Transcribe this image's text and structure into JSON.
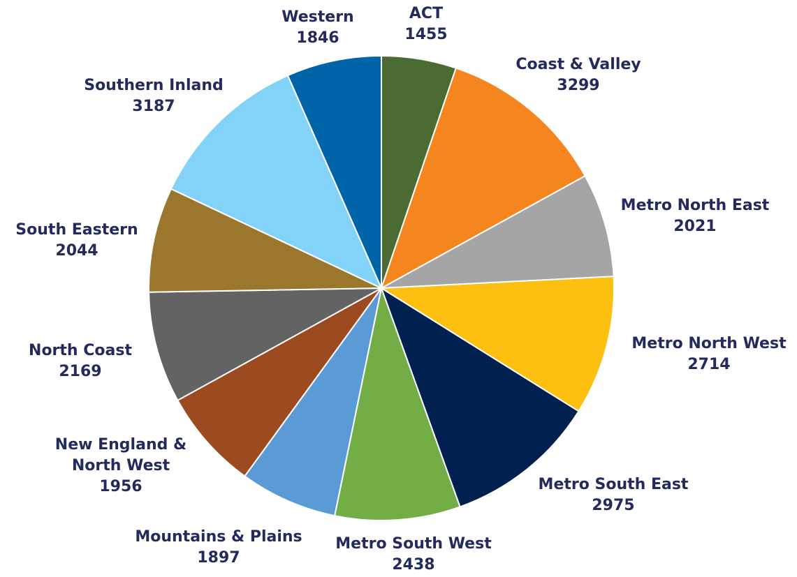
{
  "chart_data": {
    "type": "pie",
    "categories": [
      "ACT",
      "Coast & Valley",
      "Metro North East",
      "Metro North West",
      "Metro South East",
      "Metro South West",
      "Mountains & Plains",
      "New England & North West",
      "North Coast",
      "South Eastern",
      "Southern Inland",
      "Western"
    ],
    "values": [
      1455,
      3299,
      2021,
      2714,
      2975,
      2438,
      1897,
      1956,
      2169,
      2044,
      3187,
      1846
    ],
    "colors": [
      "#4a6b32",
      "#f5851f",
      "#a5a5a5",
      "#fdbf10",
      "#00214f",
      "#72ad45",
      "#5b9bd5",
      "#9c4a20",
      "#636363",
      "#9a772c",
      "#82d3f7",
      "#0064a8"
    ]
  }
}
